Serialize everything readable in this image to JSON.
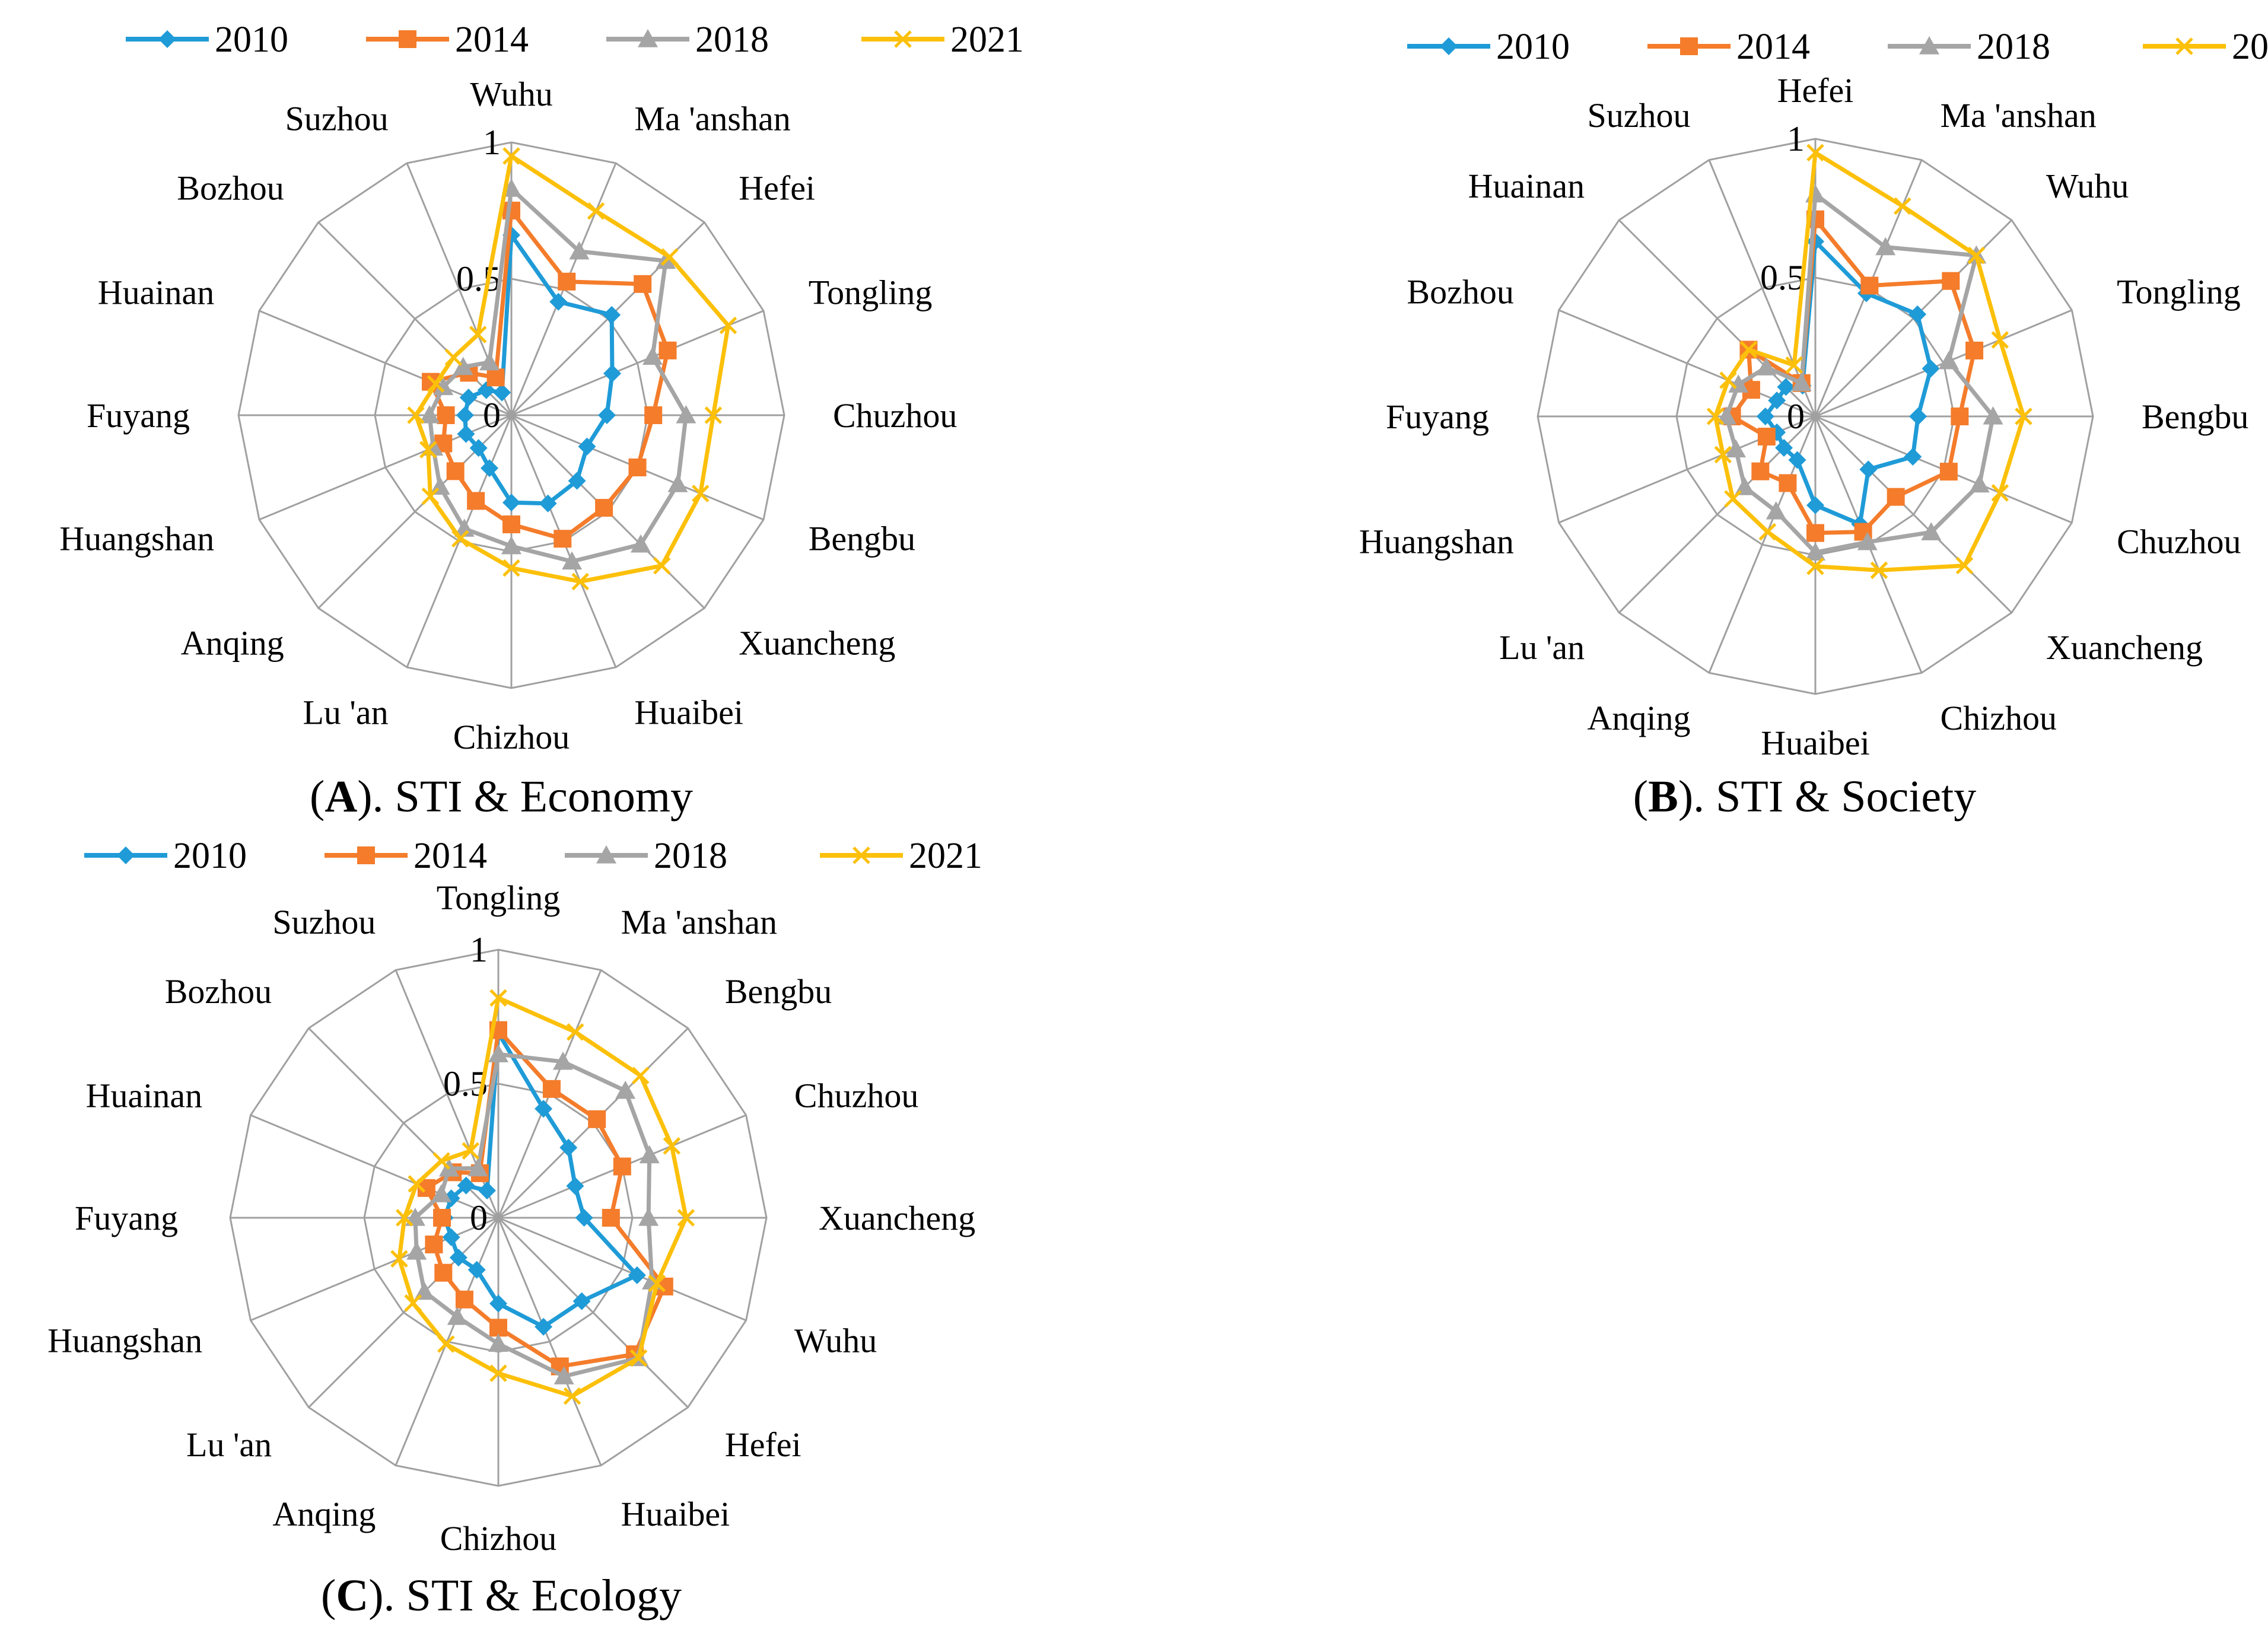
{
  "legend": {
    "series_names": [
      "2010",
      "2014",
      "2018",
      "2021"
    ],
    "colors": {
      "2010": "#1f9bd7",
      "2014": "#f47c2b",
      "2018": "#a5a5a5",
      "2021": "#fcc00a"
    },
    "markers": {
      "2010": "diamond",
      "2014": "square",
      "2018": "triangle",
      "2021": "x"
    }
  },
  "chart_data": [
    {
      "type": "radar",
      "panel_letter": "A",
      "caption": "). STI & Economy",
      "axis_ticks": [
        "0",
        "0.5",
        "1"
      ],
      "range": [
        0,
        1
      ],
      "categories": [
        "Wuhu",
        "Ma 'anshan",
        "Hefei",
        "Tongling",
        "Chuzhou",
        "Bengbu",
        "Xuancheng",
        "Huaibei",
        "Chizhou",
        "Lu 'an",
        "Anqing",
        "Huangshan",
        "Fuyang",
        "Huainan",
        "Bozhou",
        "Suzhou"
      ],
      "series": [
        {
          "name": "2010",
          "values": [
            0.66,
            0.45,
            0.52,
            0.4,
            0.35,
            0.3,
            0.34,
            0.35,
            0.32,
            0.21,
            0.17,
            0.18,
            0.17,
            0.17,
            0.13,
            0.09
          ]
        },
        {
          "name": "2014",
          "values": [
            0.75,
            0.53,
            0.68,
            0.62,
            0.52,
            0.5,
            0.48,
            0.49,
            0.4,
            0.34,
            0.29,
            0.27,
            0.24,
            0.32,
            0.22,
            0.15
          ]
        },
        {
          "name": "2018",
          "values": [
            0.83,
            0.65,
            0.8,
            0.56,
            0.64,
            0.66,
            0.67,
            0.58,
            0.48,
            0.45,
            0.37,
            0.31,
            0.3,
            0.27,
            0.25,
            0.21
          ]
        },
        {
          "name": "2021",
          "values": [
            0.95,
            0.81,
            0.82,
            0.86,
            0.74,
            0.75,
            0.78,
            0.66,
            0.56,
            0.49,
            0.42,
            0.33,
            0.35,
            0.3,
            0.3,
            0.32
          ]
        }
      ]
    },
    {
      "type": "radar",
      "panel_letter": "B",
      "caption": "). STI & Society",
      "axis_ticks": [
        "0",
        "0.5",
        "1"
      ],
      "range": [
        0,
        1
      ],
      "categories": [
        "Hefei",
        "Ma 'anshan",
        "Wuhu",
        "Tongling",
        "Bengbu",
        "Chuzhou",
        "Xuancheng",
        "Chizhou",
        "Huaibei",
        "Anqing",
        "Lu 'an",
        "Huangshan",
        "Fuyang",
        "Bozhou",
        "Huainan",
        "Suzhou"
      ],
      "series": [
        {
          "name": "2010",
          "values": [
            0.63,
            0.48,
            0.52,
            0.45,
            0.37,
            0.38,
            0.27,
            0.42,
            0.32,
            0.17,
            0.16,
            0.15,
            0.18,
            0.15,
            0.15,
            0.12
          ]
        },
        {
          "name": "2014",
          "values": [
            0.71,
            0.51,
            0.69,
            0.62,
            0.52,
            0.52,
            0.41,
            0.45,
            0.42,
            0.26,
            0.28,
            0.19,
            0.3,
            0.25,
            0.34,
            0.13
          ]
        },
        {
          "name": "2018",
          "values": [
            0.8,
            0.66,
            0.82,
            0.52,
            0.64,
            0.64,
            0.59,
            0.49,
            0.49,
            0.37,
            0.36,
            0.31,
            0.32,
            0.3,
            0.25,
            0.13
          ]
        },
        {
          "name": "2021",
          "values": [
            0.95,
            0.82,
            0.82,
            0.72,
            0.75,
            0.72,
            0.76,
            0.6,
            0.54,
            0.45,
            0.42,
            0.36,
            0.36,
            0.34,
            0.34,
            0.2
          ]
        }
      ]
    },
    {
      "type": "radar",
      "panel_letter": "C",
      "caption": "). STI & Ecology",
      "axis_ticks": [
        "0",
        "0.5",
        "1"
      ],
      "range": [
        0,
        1
      ],
      "categories": [
        "Tongling",
        "Ma 'anshan",
        "Bengbu",
        "Chuzhou",
        "Xuancheng",
        "Wuhu",
        "Hefei",
        "Huaibei",
        "Chizhou",
        "Anqing",
        "Lu 'an",
        "Huangshan",
        "Fuyang",
        "Huainan",
        "Bozhou",
        "Suzhou"
      ],
      "series": [
        {
          "name": "2010",
          "values": [
            0.69,
            0.44,
            0.37,
            0.31,
            0.32,
            0.56,
            0.44,
            0.44,
            0.32,
            0.21,
            0.21,
            0.19,
            0.2,
            0.19,
            0.17,
            0.11
          ]
        },
        {
          "name": "2014",
          "values": [
            0.7,
            0.52,
            0.52,
            0.5,
            0.42,
            0.67,
            0.72,
            0.6,
            0.41,
            0.33,
            0.29,
            0.26,
            0.21,
            0.29,
            0.24,
            0.18
          ]
        },
        {
          "name": "2018",
          "values": [
            0.61,
            0.63,
            0.67,
            0.61,
            0.56,
            0.62,
            0.74,
            0.64,
            0.47,
            0.4,
            0.39,
            0.33,
            0.31,
            0.23,
            0.26,
            0.2
          ]
        },
        {
          "name": "2021",
          "values": [
            0.82,
            0.75,
            0.75,
            0.7,
            0.7,
            0.64,
            0.74,
            0.72,
            0.58,
            0.51,
            0.45,
            0.4,
            0.35,
            0.33,
            0.3,
            0.27
          ]
        }
      ]
    }
  ]
}
